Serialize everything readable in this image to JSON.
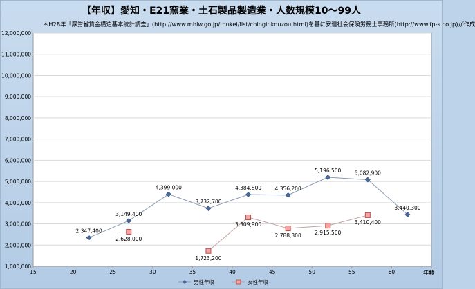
{
  "title": "【年収】愛知・E21窯業・土石製品製造業・人数規模10～99人",
  "subtitle": "＊H28年「厚労省賃金構造基本統計調査」(http://www.mhlw.go.jp/toukei/list/chinginkouzou.html)を基に安達社会保険労務士事務所(http://www.fp-s.co.jp)が作成",
  "chart_data": {
    "type": "line",
    "title": "【年収】愛知・E21窯業・土石製品製造業・人数規模10～99人",
    "xlabel": "年齢",
    "ylabel": "",
    "xlim": [
      15,
      65
    ],
    "ylim": [
      1000000,
      12000000
    ],
    "xticks": [
      15,
      20,
      25,
      30,
      35,
      40,
      45,
      50,
      55,
      60,
      65
    ],
    "yticks": [
      1000000,
      2000000,
      3000000,
      4000000,
      5000000,
      6000000,
      7000000,
      8000000,
      9000000,
      10000000,
      11000000,
      12000000
    ],
    "grid": true,
    "legend_position": "bottom",
    "series": [
      {
        "name": "男性年収",
        "color": "#4a6a9b",
        "marker": "diamond",
        "x": [
          22,
          27,
          32,
          37,
          42,
          47,
          52,
          57,
          62
        ],
        "values": [
          2347400,
          3149400,
          4399000,
          3732700,
          4384800,
          4356200,
          5196500,
          5082900,
          3440300
        ],
        "labels": [
          "2,347,400",
          "3,149,400",
          "4,399,000",
          "3,732,700",
          "4,384,800",
          "4,356,200",
          "5,196,500",
          "5,082,900",
          "3,440,300"
        ]
      },
      {
        "name": "女性年収",
        "color": "#c0504d",
        "marker": "square",
        "x": [
          27,
          37,
          42,
          47,
          52,
          57
        ],
        "values": [
          2628000,
          1723200,
          3309900,
          2788300,
          2915500,
          3410400
        ],
        "labels": [
          "2,628,000",
          "1,723,200",
          "3,309,900",
          "2,788,300",
          "2,915,500",
          "3,410,400"
        ],
        "segments": [
          [
            1,
            2,
            3,
            4,
            5
          ]
        ]
      }
    ]
  }
}
